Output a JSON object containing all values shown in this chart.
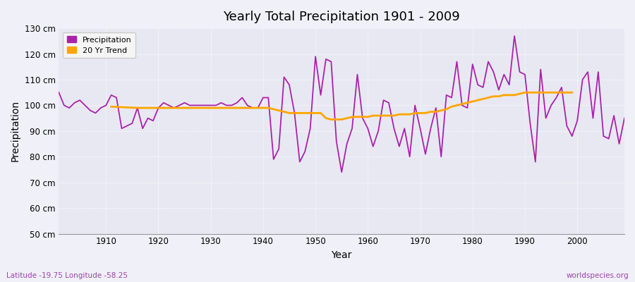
{
  "title": "Yearly Total Precipitation 1901 - 2009",
  "xlabel": "Year",
  "ylabel": "Precipitation",
  "subtitle": "Latitude -19.75 Longitude -58.25",
  "watermark": "worldspecies.org",
  "ylim": [
    50,
    130
  ],
  "yticks": [
    50,
    60,
    70,
    80,
    90,
    100,
    110,
    120,
    130
  ],
  "ytick_labels": [
    "50 cm",
    "60 cm",
    "70 cm",
    "80 cm",
    "90 cm",
    "100 cm",
    "110 cm",
    "120 cm",
    "130 cm"
  ],
  "bg_color": "#f0f0f8",
  "plot_bg_color": "#e8e8f2",
  "precip_color": "#aa22aa",
  "trend_color": "#ffa500",
  "years": [
    1901,
    1902,
    1903,
    1904,
    1905,
    1906,
    1907,
    1908,
    1909,
    1910,
    1911,
    1912,
    1913,
    1914,
    1915,
    1916,
    1917,
    1918,
    1919,
    1920,
    1921,
    1922,
    1923,
    1924,
    1925,
    1926,
    1927,
    1928,
    1929,
    1930,
    1931,
    1932,
    1933,
    1934,
    1935,
    1936,
    1937,
    1938,
    1939,
    1940,
    1941,
    1942,
    1943,
    1944,
    1945,
    1946,
    1947,
    1948,
    1949,
    1950,
    1951,
    1952,
    1953,
    1954,
    1955,
    1956,
    1957,
    1958,
    1959,
    1960,
    1961,
    1962,
    1963,
    1964,
    1965,
    1966,
    1967,
    1968,
    1969,
    1970,
    1971,
    1972,
    1973,
    1974,
    1975,
    1976,
    1977,
    1978,
    1979,
    1980,
    1981,
    1982,
    1983,
    1984,
    1985,
    1986,
    1987,
    1988,
    1989,
    1990,
    1991,
    1992,
    1993,
    1994,
    1995,
    1996,
    1997,
    1998,
    1999,
    2000,
    2001,
    2002,
    2003,
    2004,
    2005,
    2006,
    2007,
    2008,
    2009
  ],
  "precipitation": [
    105,
    100,
    99,
    101,
    102,
    100,
    98,
    97,
    99,
    100,
    104,
    103,
    91,
    92,
    93,
    99,
    91,
    95,
    94,
    99,
    101,
    100,
    99,
    100,
    101,
    100,
    100,
    100,
    100,
    100,
    100,
    101,
    100,
    100,
    101,
    103,
    100,
    99,
    99,
    103,
    103,
    79,
    83,
    111,
    108,
    97,
    78,
    82,
    91,
    119,
    104,
    118,
    117,
    86,
    74,
    85,
    91,
    112,
    95,
    91,
    84,
    90,
    102,
    101,
    91,
    84,
    91,
    80,
    100,
    91,
    81,
    91,
    99,
    80,
    104,
    103,
    117,
    100,
    99,
    116,
    108,
    107,
    117,
    113,
    106,
    112,
    108,
    127,
    113,
    112,
    93,
    78,
    114,
    95,
    100,
    103,
    107,
    92,
    88,
    94,
    110,
    113,
    95,
    113,
    88,
    87,
    96,
    85,
    95
  ],
  "trend_years": [
    1911,
    1912,
    1913,
    1914,
    1915,
    1916,
    1917,
    1918,
    1919,
    1920,
    1921,
    1922,
    1923,
    1924,
    1925,
    1926,
    1927,
    1928,
    1929,
    1930,
    1931,
    1932,
    1933,
    1934,
    1935,
    1936,
    1937,
    1938,
    1939,
    1940,
    1941,
    1942,
    1943,
    1944,
    1945,
    1946,
    1947,
    1948,
    1949,
    1950,
    1951,
    1952,
    1953,
    1954,
    1955,
    1956,
    1957,
    1958,
    1959,
    1960,
    1961,
    1962,
    1963,
    1964,
    1965,
    1966,
    1967,
    1968,
    1969,
    1970,
    1971,
    1972,
    1973,
    1974,
    1975,
    1976,
    1977,
    1978,
    1979,
    1980,
    1981,
    1982,
    1983,
    1984,
    1985,
    1986,
    1987,
    1988,
    1989,
    1990,
    1991,
    1992,
    1993,
    1994,
    1995,
    1996,
    1997,
    1998,
    1999
  ],
  "trend": [
    99.5,
    99.4,
    99.3,
    99.2,
    99.1,
    99.0,
    99.0,
    99.0,
    99.0,
    99.0,
    99.0,
    99.0,
    99.0,
    99.0,
    99.0,
    99.0,
    99.0,
    99.0,
    99.0,
    99.0,
    99.0,
    99.0,
    99.0,
    99.0,
    99.0,
    99.0,
    99.0,
    99.0,
    99.0,
    99.0,
    99.0,
    98.5,
    98.0,
    97.5,
    97.0,
    97.0,
    97.0,
    97.0,
    97.0,
    97.0,
    97.0,
    95.0,
    94.5,
    94.5,
    94.5,
    95.0,
    95.5,
    95.5,
    95.5,
    95.5,
    96.0,
    96.0,
    96.0,
    96.0,
    96.0,
    96.5,
    96.5,
    96.5,
    97.0,
    97.0,
    97.0,
    97.5,
    97.5,
    98.0,
    98.5,
    99.5,
    100.0,
    100.5,
    101.0,
    101.5,
    102.0,
    102.5,
    103.0,
    103.5,
    103.5,
    104.0,
    104.0,
    104.0,
    104.5,
    105.0,
    105.0,
    105.0,
    105.0,
    105.0,
    105.0,
    105.0,
    105.0,
    105.0,
    105.0
  ]
}
